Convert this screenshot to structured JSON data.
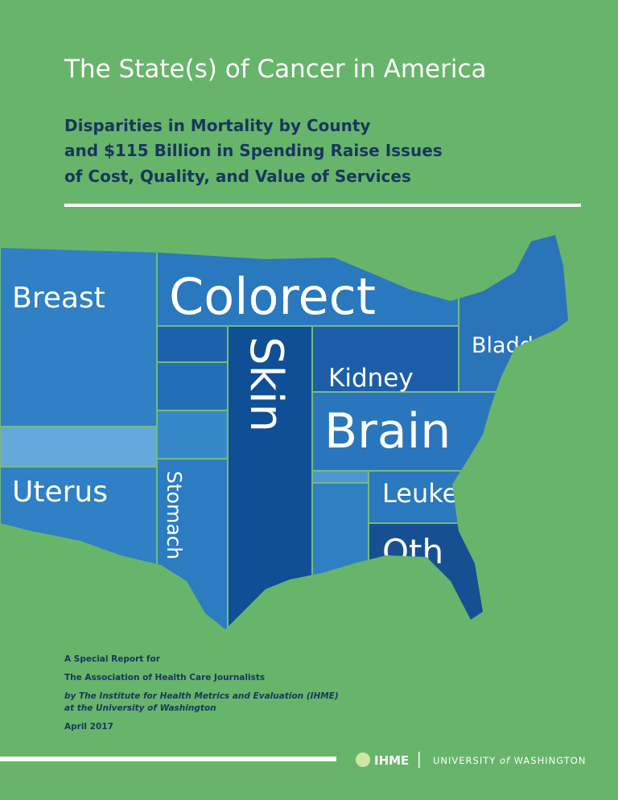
{
  "header": {
    "title": "The State(s) of Cancer in America",
    "subtitle": [
      "Disparities in Mortality by County",
      "and $115 Billion in Spending Raise Issues",
      "of Cost, Quality, and Value of Services"
    ]
  },
  "map_labels": {
    "breast": "Breast",
    "colorectal": "Colorect",
    "skin": "Skin",
    "kidney": "Kidney",
    "bladder": "Bladd",
    "brain": "Brain",
    "uterus": "Uterus",
    "stomach": "Stomach",
    "leukemia": "Leuke",
    "other": "Oth"
  },
  "footer": {
    "line1": "A Special Report for",
    "line2": "The Association of Health Care Journalists",
    "line3": "by The Institute for Health Metrics and Evaluation (IHME)",
    "line4": "at the University of Washington",
    "date": "April 2017"
  },
  "logos": {
    "ihme": "IHME",
    "uw_pre": "UNIVERSITY ",
    "uw_of": "of",
    "uw_post": " WASHINGTON"
  }
}
